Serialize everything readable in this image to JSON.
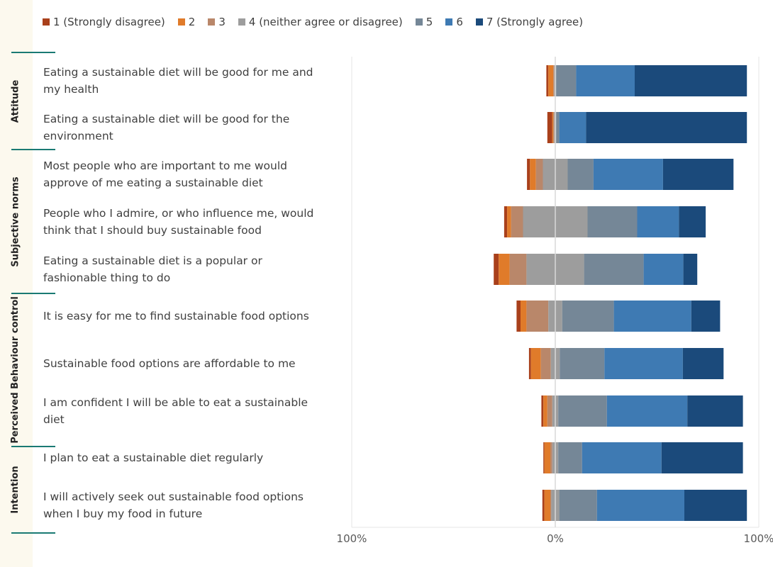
{
  "legend": [
    {
      "label": "1 (Strongly disagree)",
      "color": "#a9401b"
    },
    {
      "label": "2",
      "color": "#e07b2a"
    },
    {
      "label": "3",
      "color": "#b9876a"
    },
    {
      "label": "4 (neither agree or disagree)",
      "color": "#9d9d9d"
    },
    {
      "label": "5",
      "color": "#758797"
    },
    {
      "label": "6",
      "color": "#3e7ab3"
    },
    {
      "label": "7 (Strongly agree)",
      "color": "#1b4a7b"
    }
  ],
  "groups": [
    {
      "label": "Attitude"
    },
    {
      "label": "Subjective norms"
    },
    {
      "label": "Perceived Behaviour control"
    },
    {
      "label": "Intention"
    }
  ],
  "chart_data": {
    "type": "bar",
    "stacked": true,
    "diverging": true,
    "orientation": "horizontal",
    "series_names": [
      "1 (Strongly disagree)",
      "2",
      "3",
      "4 (neither agree or disagree)",
      "5",
      "6",
      "7 (Strongly agree)"
    ],
    "categories": [
      "Eating a sustainable diet will be good for me and my health",
      "Eating a sustainable diet will be good for the environment",
      "Most people who are important to me would approve of me eating a sustainable diet",
      "People who I admire, or who influence me, would think that I should buy sustainable food",
      "Eating a sustainable diet is a popular or fashionable thing to do",
      "It is easy for me to find sustainable food options",
      "Sustainable food options are affordable to me",
      "I am confident I will be able to eat a sustainable diet",
      "I plan to eat a sustainable diet regularly",
      "I will actively seek out sustainable food options when I buy my food in future"
    ],
    "values": [
      [
        1,
        2.5,
        0.5,
        1,
        10,
        29.5,
        56.5
      ],
      [
        2.5,
        0.5,
        0.5,
        1,
        1.5,
        13.5,
        81
      ],
      [
        1.5,
        3,
        3.5,
        12.5,
        13,
        35,
        35.5
      ],
      [
        1.5,
        2,
        6,
        32.5,
        25,
        21,
        13.5
      ],
      [
        2.5,
        5.5,
        8.5,
        29,
        30,
        20,
        7
      ],
      [
        2,
        3,
        11,
        7,
        26,
        39,
        14.5
      ],
      [
        1,
        5,
        5,
        4.5,
        22.5,
        39.5,
        20.5
      ],
      [
        1,
        2,
        2.5,
        3,
        24.5,
        40.5,
        28
      ],
      [
        0.5,
        3,
        1,
        3,
        12,
        40,
        41
      ],
      [
        1,
        3,
        0.5,
        4,
        19,
        44,
        31.5
      ]
    ],
    "xlim": [
      -100,
      100
    ],
    "tick_labels": [
      "100%",
      "0%",
      "100%"
    ]
  }
}
